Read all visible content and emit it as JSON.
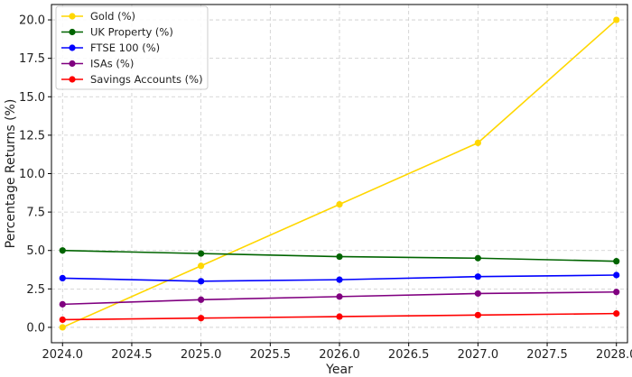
{
  "chart_data": {
    "type": "line",
    "title": "",
    "xlabel": "Year",
    "ylabel": "Percentage Returns (%)",
    "x": [
      2024,
      2025,
      2026,
      2027,
      2028
    ],
    "xlim": [
      2023.92,
      2028.08
    ],
    "ylim": [
      -1.0,
      21.0
    ],
    "xticks": [
      2024.0,
      2024.5,
      2025.0,
      2025.5,
      2026.0,
      2026.5,
      2027.0,
      2027.5,
      2028.0
    ],
    "xtick_labels": [
      "2024.0",
      "2024.5",
      "2025.0",
      "2025.5",
      "2026.0",
      "2026.5",
      "2027.0",
      "2027.5",
      "2028.0"
    ],
    "yticks": [
      0.0,
      2.5,
      5.0,
      7.5,
      10.0,
      12.5,
      15.0,
      17.5,
      20.0
    ],
    "ytick_labels": [
      "0.0",
      "2.5",
      "5.0",
      "7.5",
      "10.0",
      "12.5",
      "15.0",
      "17.5",
      "20.0"
    ],
    "grid": true,
    "grid_style": "dashed",
    "legend_position": "top-left",
    "series": [
      {
        "name": "Gold (%)",
        "color": "#FFD700",
        "values": [
          0.0,
          4.0,
          8.0,
          12.0,
          20.0
        ]
      },
      {
        "name": "UK Property (%)",
        "color": "#006400",
        "values": [
          5.0,
          4.8,
          4.6,
          4.5,
          4.3
        ]
      },
      {
        "name": "FTSE 100 (%)",
        "color": "#0000FF",
        "values": [
          3.2,
          3.0,
          3.1,
          3.3,
          3.4
        ]
      },
      {
        "name": "ISAs (%)",
        "color": "#800080",
        "values": [
          1.5,
          1.8,
          2.0,
          2.2,
          2.3
        ]
      },
      {
        "name": "Savings Accounts (%)",
        "color": "#FF0000",
        "values": [
          0.5,
          0.6,
          0.7,
          0.8,
          0.9
        ]
      }
    ]
  }
}
